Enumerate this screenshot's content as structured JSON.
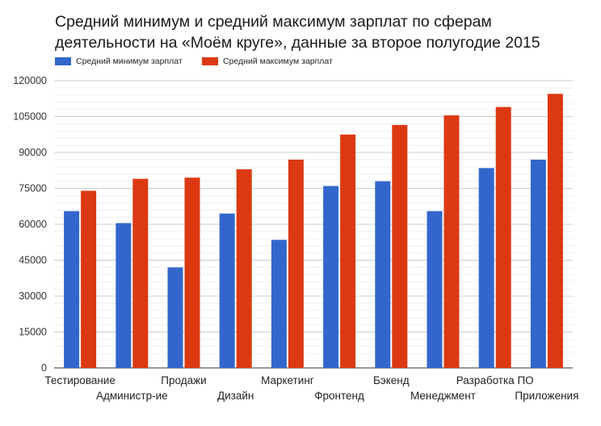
{
  "title_lines": [
    "Средний минимум и средний максимум зарплат по сферам",
    "деятельности на «Моём круге», данные за второе полугодие 2015"
  ],
  "chart_data": {
    "type": "bar",
    "title": "Средний минимум и средний максимум зарплат по сферам деятельности на «Моём круге», данные за второе полугодие 2015",
    "xlabel": "",
    "ylabel": "",
    "categories": [
      "Тестирование",
      "Администр-ие",
      "Продажи",
      "Дизайн",
      "Маркетинг",
      "Фронтенд",
      "Бэкенд",
      "Менеджмент",
      "Разработка ПО",
      "Приложения"
    ],
    "series": [
      {
        "name": "Средний минимум зарплат",
        "color": "#3366cc",
        "values": [
          65500,
          60500,
          42000,
          64500,
          53500,
          76000,
          78000,
          65500,
          83500,
          87000
        ]
      },
      {
        "name": "Средний максимум зарплат",
        "color": "#dc3912",
        "values": [
          74000,
          79000,
          79500,
          83000,
          87000,
          97500,
          101500,
          105500,
          109000,
          114500
        ]
      }
    ],
    "ylim": [
      0,
      120000
    ],
    "yticks": [
      0,
      15000,
      30000,
      45000,
      60000,
      75000,
      90000,
      105000,
      120000
    ],
    "grid": true,
    "legend": "top-left"
  }
}
